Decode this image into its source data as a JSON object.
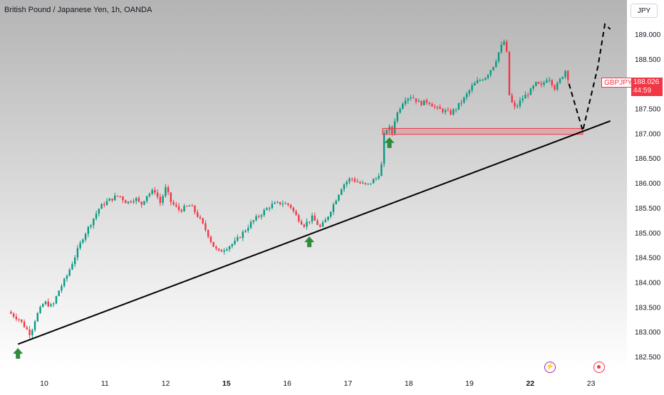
{
  "header": {
    "title": "British Pound / Japanese Yen, 1h, OANDA"
  },
  "currency_button": "JPY",
  "price_tag": {
    "symbol": "GBPJPY",
    "price": "188.026",
    "countdown": "44:59"
  },
  "events": {
    "bolt": "lightning-event-icon",
    "dot": "economic-event-icon"
  },
  "colors": {
    "up": "#089981",
    "down": "#f23645",
    "zone": "#f23645",
    "arrow": "#2e8b3a",
    "line": "#000000"
  },
  "chart_data": {
    "type": "candlestick",
    "title": "British Pound / Japanese Yen, 1h, OANDA",
    "symbol": "GBPJPY",
    "timeframe": "1h",
    "last_price": 188.026,
    "y_ticks": [
      "189.000",
      "188.500",
      "188.000",
      "187.500",
      "187.000",
      "186.500",
      "186.000",
      "185.500",
      "185.000",
      "184.500",
      "184.000",
      "183.500",
      "183.000",
      "182.500"
    ],
    "x_ticks": [
      {
        "label": "10",
        "bold": false
      },
      {
        "label": "11",
        "bold": false
      },
      {
        "label": "12",
        "bold": false
      },
      {
        "label": "15",
        "bold": true
      },
      {
        "label": "16",
        "bold": false
      },
      {
        "label": "17",
        "bold": false
      },
      {
        "label": "18",
        "bold": false
      },
      {
        "label": "19",
        "bold": false
      },
      {
        "label": "22",
        "bold": true
      },
      {
        "label": "23",
        "bold": false
      }
    ],
    "ylim": [
      182.4,
      189.4
    ],
    "price_path": [
      [
        0.0,
        183.4
      ],
      [
        0.4,
        183.25
      ],
      [
        0.8,
        182.95
      ],
      [
        1.0,
        183.3
      ],
      [
        1.3,
        183.6
      ],
      [
        1.6,
        183.5
      ],
      [
        1.8,
        183.8
      ],
      [
        2.1,
        184.1
      ],
      [
        2.4,
        184.5
      ],
      [
        2.7,
        184.9
      ],
      [
        3.0,
        185.2
      ],
      [
        3.3,
        185.5
      ],
      [
        3.5,
        185.6
      ],
      [
        3.8,
        185.7
      ],
      [
        4.0,
        185.75
      ],
      [
        4.3,
        185.6
      ],
      [
        4.6,
        185.7
      ],
      [
        4.8,
        185.55
      ],
      [
        5.0,
        185.75
      ],
      [
        5.3,
        185.85
      ],
      [
        5.5,
        185.6
      ],
      [
        5.7,
        185.9
      ],
      [
        5.9,
        185.6
      ],
      [
        6.2,
        185.45
      ],
      [
        6.6,
        185.55
      ],
      [
        6.9,
        185.3
      ],
      [
        7.2,
        185.0
      ],
      [
        7.4,
        184.75
      ],
      [
        7.6,
        184.6
      ],
      [
        7.9,
        184.7
      ],
      [
        8.2,
        184.8
      ],
      [
        8.5,
        185.0
      ],
      [
        8.8,
        185.2
      ],
      [
        9.2,
        185.4
      ],
      [
        9.5,
        185.55
      ],
      [
        9.9,
        185.6
      ],
      [
        10.2,
        185.55
      ],
      [
        10.4,
        185.35
      ],
      [
        10.7,
        185.15
      ],
      [
        11.0,
        185.3
      ],
      [
        11.3,
        185.1
      ],
      [
        11.5,
        185.25
      ],
      [
        11.8,
        185.6
      ],
      [
        12.1,
        185.95
      ],
      [
        12.4,
        186.1
      ],
      [
        12.7,
        186.0
      ],
      [
        13.0,
        185.95
      ],
      [
        13.2,
        186.05
      ],
      [
        13.35,
        186.1
      ],
      [
        13.5,
        186.3
      ],
      [
        13.6,
        186.95
      ],
      [
        13.75,
        187.15
      ],
      [
        13.9,
        187.0
      ],
      [
        14.0,
        187.3
      ],
      [
        14.2,
        187.55
      ],
      [
        14.35,
        187.7
      ],
      [
        14.6,
        187.75
      ],
      [
        14.9,
        187.6
      ],
      [
        15.2,
        187.65
      ],
      [
        15.5,
        187.5
      ],
      [
        15.8,
        187.45
      ],
      [
        16.0,
        187.4
      ],
      [
        16.2,
        187.5
      ],
      [
        16.5,
        187.7
      ],
      [
        16.8,
        187.95
      ],
      [
        17.0,
        188.05
      ],
      [
        17.3,
        188.15
      ],
      [
        17.6,
        188.4
      ],
      [
        17.8,
        188.7
      ],
      [
        17.95,
        188.85
      ],
      [
        18.05,
        188.6
      ],
      [
        18.15,
        187.7
      ],
      [
        18.35,
        187.5
      ],
      [
        18.6,
        187.7
      ],
      [
        18.9,
        187.85
      ],
      [
        19.1,
        188.0
      ],
      [
        19.3,
        187.95
      ],
      [
        19.55,
        188.15
      ],
      [
        19.8,
        187.9
      ],
      [
        20.0,
        188.1
      ],
      [
        20.2,
        188.3
      ],
      [
        20.3,
        188.026
      ]
    ],
    "x_range": [
      -0.3,
      22.4
    ],
    "x_tick_positions": [
      1.3,
      3.5,
      5.7,
      7.9,
      10.1,
      12.3,
      14.5,
      16.7,
      18.9,
      21.1
    ],
    "trendline": [
      [
        0.35,
        182.75
      ],
      [
        21.8,
        187.25
      ]
    ],
    "support_zone": {
      "x": [
        13.55,
        20.8
      ],
      "y": [
        186.98,
        187.1
      ]
    },
    "projection": [
      [
        20.3,
        188.0
      ],
      [
        20.8,
        187.05
      ],
      [
        21.35,
        188.35
      ],
      [
        21.6,
        189.2
      ],
      [
        21.8,
        189.1
      ]
    ],
    "up_arrows": [
      [
        0.35,
        182.7
      ],
      [
        10.9,
        184.95
      ],
      [
        13.8,
        186.95
      ]
    ]
  }
}
